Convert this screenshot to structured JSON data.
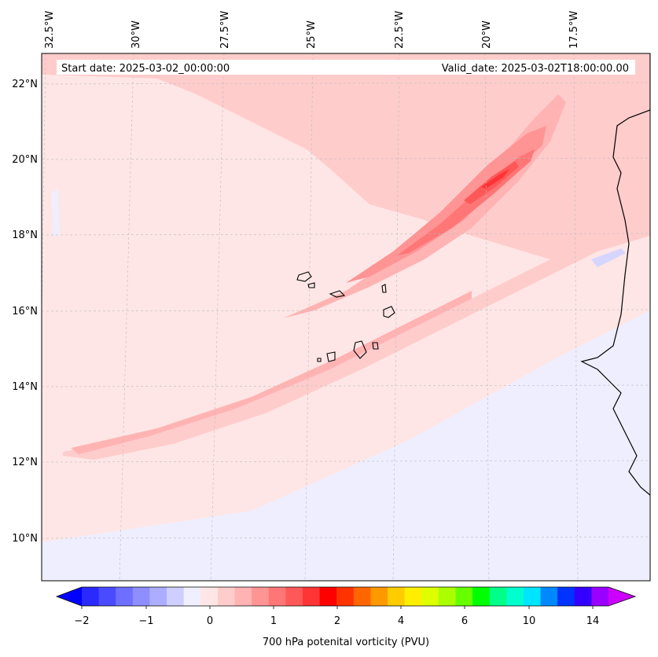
{
  "header": {
    "start_date": "Start date: 2025-03-02_00:00:00",
    "valid_date": "Valid_date: 2025-03-02T18:00:00.00"
  },
  "axes": {
    "lon_labels": [
      "32.5°W",
      "30°W",
      "27.5°W",
      "25°W",
      "22.5°W",
      "20°W",
      "17.5°W"
    ],
    "lat_labels": [
      "22°N",
      "20°N",
      "18°N",
      "16°N",
      "14°N",
      "12°N",
      "10°N"
    ]
  },
  "colorbar": {
    "label": "700 hPa potenital vorticity (PVU)",
    "ticks": [
      "−2",
      "−1",
      "0",
      "1",
      "2",
      "4",
      "6",
      "10",
      "14"
    ],
    "colors": [
      "#0000ff",
      "#2a2aff",
      "#4a4aff",
      "#6e6eff",
      "#8e8eff",
      "#adadff",
      "#cfcfff",
      "#efefff",
      "#ffe6e6",
      "#ffcccc",
      "#ffb3b3",
      "#ff9494",
      "#ff7676",
      "#ff5858",
      "#ff3434",
      "#ff0000",
      "#ff3300",
      "#ff6600",
      "#ff9900",
      "#ffcc00",
      "#ffee00",
      "#ddff00",
      "#aaff00",
      "#66ff00",
      "#00ff00",
      "#00ff88",
      "#00ffcc",
      "#00e5ff",
      "#0088ff",
      "#0033ff",
      "#3300ff",
      "#9900ff",
      "#cc00ff"
    ]
  },
  "map": {
    "region": "Cabo Verde / West Africa coast",
    "colors": {
      "pv_neg": "#eeeeff",
      "pv_0": "#ffe6e6",
      "pv_1": "#ffcccc",
      "pv_2": "#ffb3b3",
      "pv_3": "#ff9494",
      "pv_4": "#ff7676",
      "pv_5": "#ff5858",
      "pv_6": "#ff3434",
      "coast": "#000000"
    }
  }
}
